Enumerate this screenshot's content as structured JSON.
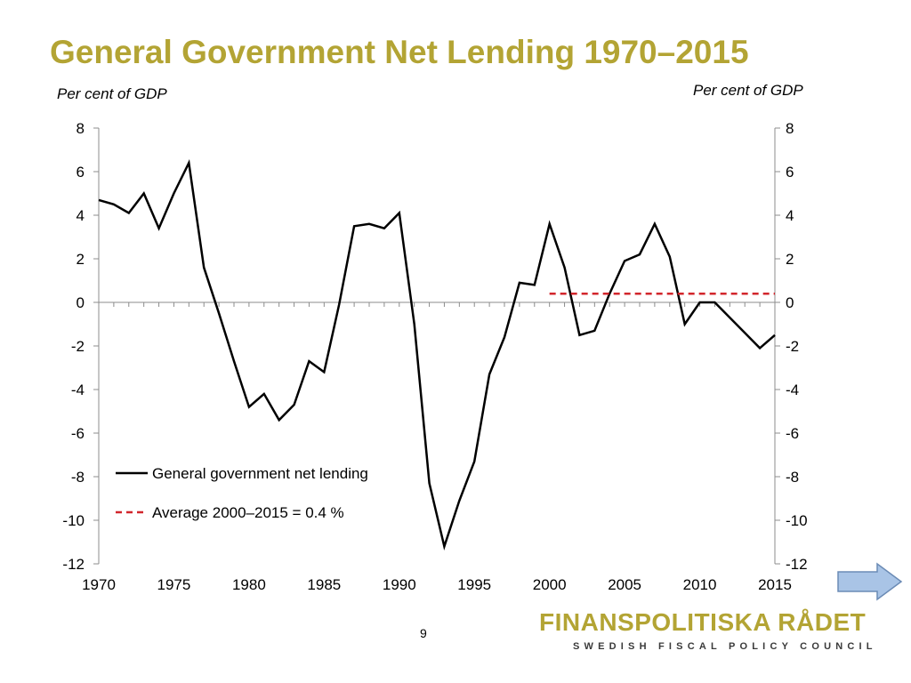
{
  "slide": {
    "title": "General Government Net Lending 1970–2015",
    "unit_left": "Per cent of GDP",
    "unit_right": "Per cent of GDP",
    "page_number": "9"
  },
  "branding": {
    "name": "FINANSPOLITISKA RÅDET",
    "tagline": "SWEDISH FISCAL POLICY COUNCIL",
    "brand_color": "#b3a434"
  },
  "navigation": {
    "next_icon": "right-arrow-icon",
    "next_color": "#a9c4e6"
  },
  "chart_data": {
    "type": "line",
    "x": [
      1970,
      1971,
      1972,
      1973,
      1974,
      1975,
      1976,
      1977,
      1978,
      1979,
      1980,
      1981,
      1982,
      1983,
      1984,
      1985,
      1986,
      1987,
      1988,
      1989,
      1990,
      1991,
      1992,
      1993,
      1994,
      1995,
      1996,
      1997,
      1998,
      1999,
      2000,
      2001,
      2002,
      2003,
      2004,
      2005,
      2006,
      2007,
      2008,
      2009,
      2010,
      2011,
      2012,
      2013,
      2014,
      2015
    ],
    "series": [
      {
        "name": "General government net lending",
        "color": "#000000",
        "style": "solid",
        "values": [
          4.7,
          4.5,
          4.1,
          5.0,
          3.4,
          5.0,
          6.4,
          1.6,
          -0.5,
          -2.7,
          -4.8,
          -4.2,
          -5.4,
          -4.7,
          -2.7,
          -3.2,
          -0.1,
          3.5,
          3.6,
          3.4,
          4.1,
          -1.0,
          -8.3,
          -11.2,
          -9.1,
          -7.3,
          -3.3,
          -1.6,
          0.9,
          0.8,
          3.6,
          1.6,
          -1.5,
          -1.3,
          0.4,
          1.9,
          2.2,
          3.6,
          2.1,
          -1.0,
          0.0,
          0.0,
          -0.7,
          -1.4,
          -2.1,
          -1.5
        ]
      },
      {
        "name": "Average 2000–2015 = 0.4 %",
        "color": "#d2262c",
        "style": "dashed",
        "x": [
          2000,
          2015
        ],
        "values": [
          0.4,
          0.4
        ]
      }
    ],
    "ylim": [
      -12,
      8
    ],
    "yticks": [
      "8",
      "6",
      "4",
      "2",
      "0",
      "-2",
      "-4",
      "-6",
      "-8",
      "-10",
      "-12"
    ],
    "xticks": [
      "1970",
      "1975",
      "1980",
      "1985",
      "1990",
      "1995",
      "2000",
      "2005",
      "2010",
      "2015"
    ],
    "xlim": [
      1970,
      2015
    ],
    "grid": false,
    "legend_position": "bottom-left"
  }
}
